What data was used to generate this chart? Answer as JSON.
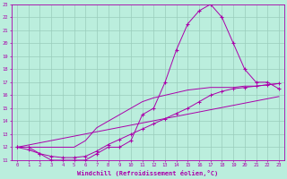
{
  "xlabel": "Windchill (Refroidissement éolien,°C)",
  "bg_color": "#bbeedd",
  "grid_color": "#99ccbb",
  "line_color": "#aa00aa",
  "xlim": [
    -0.5,
    23.5
  ],
  "ylim": [
    11,
    23
  ],
  "x_ticks": [
    0,
    1,
    2,
    3,
    4,
    5,
    6,
    7,
    8,
    9,
    10,
    11,
    12,
    13,
    14,
    15,
    16,
    17,
    18,
    19,
    20,
    21,
    22,
    23
  ],
  "y_ticks": [
    11,
    12,
    13,
    14,
    15,
    16,
    17,
    18,
    19,
    20,
    21,
    22,
    23
  ],
  "series1_x": [
    0,
    1,
    2,
    3,
    4,
    5,
    6,
    7,
    8,
    9,
    10,
    11,
    12,
    13,
    14,
    15,
    16,
    17,
    18,
    19,
    20,
    21,
    22,
    23
  ],
  "series1_y": [
    12.0,
    12.0,
    11.5,
    11.0,
    11.0,
    11.0,
    11.0,
    11.5,
    12.0,
    12.0,
    12.5,
    14.5,
    15.0,
    17.0,
    19.5,
    21.5,
    22.5,
    23.0,
    22.0,
    20.0,
    18.0,
    17.0,
    17.0,
    16.5
  ],
  "series2_x": [
    0,
    1,
    2,
    3,
    4,
    5,
    6,
    7,
    8,
    9,
    10,
    11,
    12,
    13,
    14,
    15,
    16,
    17,
    18,
    19,
    20,
    21,
    22,
    23
  ],
  "series2_y": [
    12.0,
    11.8,
    11.5,
    11.3,
    11.2,
    11.2,
    11.3,
    11.7,
    12.2,
    12.6,
    13.0,
    13.4,
    13.8,
    14.2,
    14.6,
    15.0,
    15.5,
    16.0,
    16.3,
    16.5,
    16.6,
    16.7,
    16.8,
    16.9
  ],
  "series3_x": [
    0,
    5,
    6,
    7,
    8,
    9,
    10,
    11,
    12,
    13,
    14,
    15,
    16,
    17,
    18,
    19,
    20,
    21,
    22,
    23
  ],
  "series3_y": [
    12.0,
    12.0,
    12.5,
    13.5,
    14.0,
    14.5,
    15.0,
    15.5,
    15.8,
    16.0,
    16.2,
    16.4,
    16.5,
    16.6,
    16.6,
    16.6,
    16.7,
    16.7,
    16.8,
    16.9
  ],
  "series4_x": [
    0,
    23
  ],
  "series4_y": [
    12.0,
    15.9
  ]
}
